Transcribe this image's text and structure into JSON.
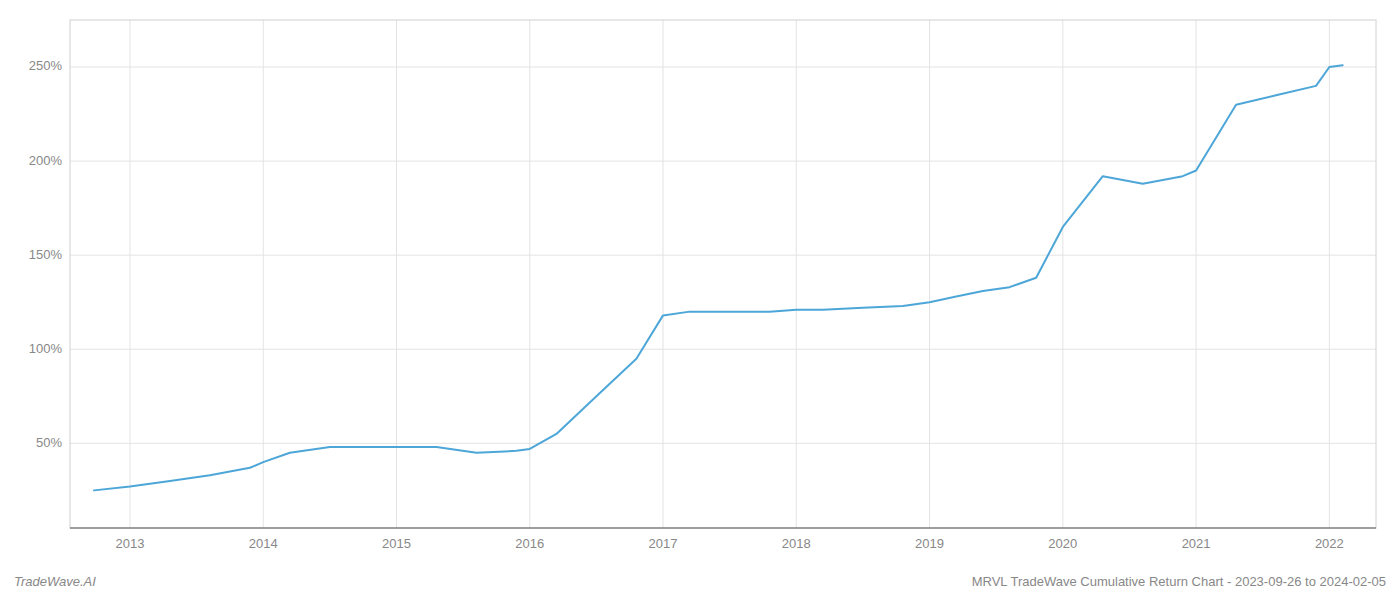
{
  "chart_data": {
    "type": "line",
    "title": "MRVL TradeWave Cumulative Return Chart - 2023-09-26 to 2024-02-05",
    "annotations": [
      "TradeWave.AI"
    ],
    "color": "#4da6d8",
    "x": [
      2012.73,
      2013.0,
      2013.3,
      2013.6,
      2013.9,
      2014.0,
      2014.2,
      2014.5,
      2014.8,
      2015.0,
      2015.3,
      2015.6,
      2015.9,
      2016.0,
      2016.2,
      2016.5,
      2016.8,
      2017.0,
      2017.2,
      2017.5,
      2017.8,
      2018.0,
      2018.2,
      2018.5,
      2018.8,
      2019.0,
      2019.2,
      2019.4,
      2019.6,
      2019.8,
      2020.0,
      2020.3,
      2020.6,
      2020.9,
      2021.0,
      2021.3,
      2021.6,
      2021.9,
      2022.0,
      2022.1
    ],
    "values": [
      25,
      27,
      30,
      33,
      37,
      40,
      45,
      48,
      48,
      48,
      48,
      45,
      46,
      47,
      55,
      75,
      95,
      118,
      120,
      120,
      120,
      121,
      121,
      122,
      123,
      125,
      128,
      131,
      133,
      138,
      165,
      192,
      188,
      192,
      195,
      230,
      235,
      240,
      250,
      251
    ],
    "xlim": [
      2012.55,
      2022.35
    ],
    "xticks": [
      2013,
      2014,
      2015,
      2016,
      2017,
      2018,
      2019,
      2020,
      2021,
      2022
    ],
    "ylim": [
      5,
      275
    ],
    "yticks": [
      {
        "value": 50,
        "label": "50%"
      },
      {
        "value": 100,
        "label": "100%"
      },
      {
        "value": 150,
        "label": "150%"
      },
      {
        "value": 200,
        "label": "200%"
      },
      {
        "value": 250,
        "label": "250%"
      }
    ],
    "grid": true
  }
}
